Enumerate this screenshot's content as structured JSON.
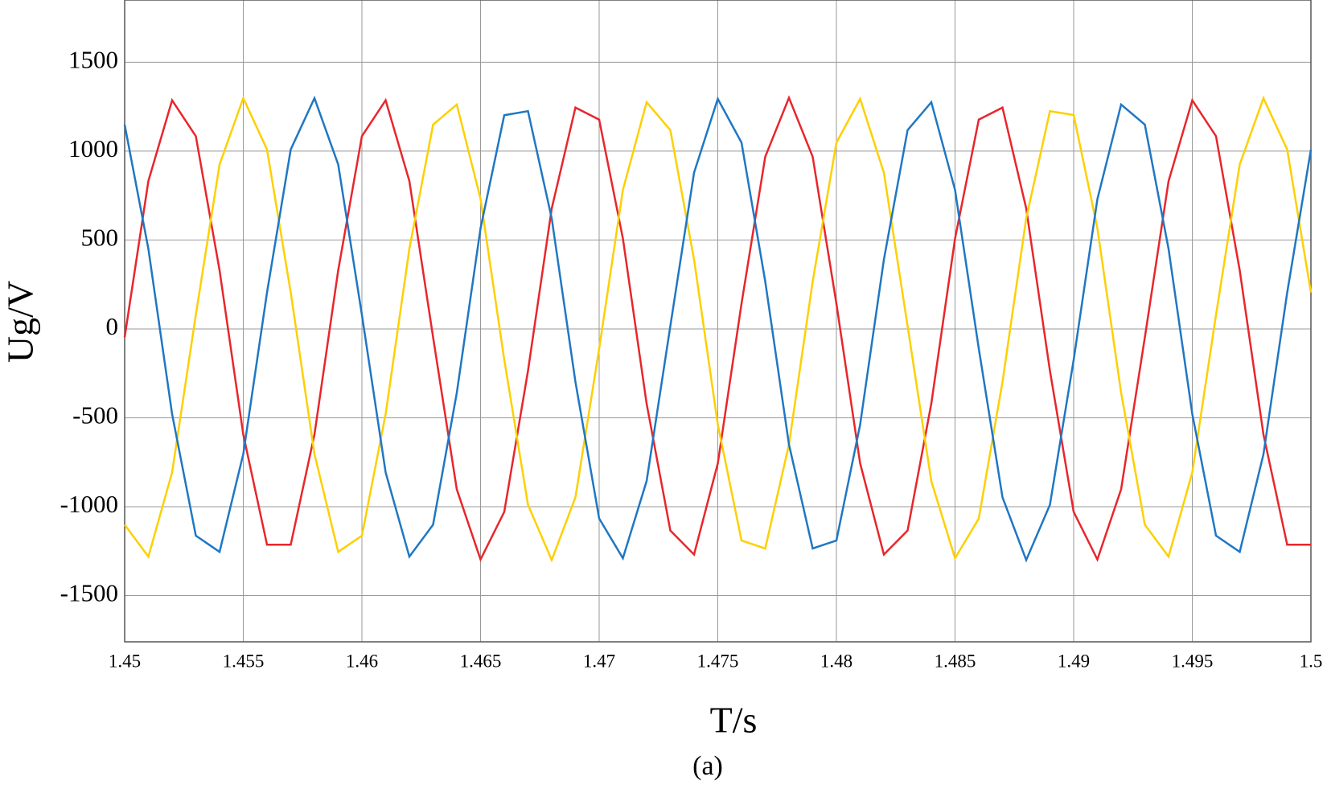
{
  "chart_data": {
    "type": "line",
    "x_label": "T/s",
    "y_label": "Ug/V",
    "caption": "(a)",
    "x": [
      1.45,
      1.451,
      1.452,
      1.453,
      1.454,
      1.455,
      1.456,
      1.457,
      1.458,
      1.459,
      1.46,
      1.461,
      1.462,
      1.463,
      1.464,
      1.465,
      1.466,
      1.467,
      1.468,
      1.469,
      1.47,
      1.471,
      1.472,
      1.473,
      1.474,
      1.475,
      1.476,
      1.477,
      1.478,
      1.479,
      1.48,
      1.481,
      1.482,
      1.483,
      1.484,
      1.485,
      1.486,
      1.487,
      1.488,
      1.489,
      1.49,
      1.491,
      1.492,
      1.493,
      1.494,
      1.495,
      1.496,
      1.497,
      1.498,
      1.499,
      1.5
    ],
    "series": [
      {
        "color": "#e8262b",
        "values": [
          -47,
          832,
          1286,
          1084,
          330,
          -594,
          -1214,
          -1214,
          -594,
          329,
          1084,
          1286,
          832,
          -47,
          -903,
          -1297,
          -1029,
          -236,
          677,
          1245,
          1177,
          509,
          -420,
          -1134,
          -1269,
          -757,
          142,
          968,
          1300,
          968,
          142,
          -756,
          -1269,
          -1134,
          -420,
          508,
          1177,
          1245,
          678,
          -236,
          -1029,
          -1297,
          -902,
          -48,
          831,
          1286,
          1084,
          329,
          -594,
          -1214,
          -1214
        ]
      },
      {
        "color": "#fdd000",
        "values": [
          -1101,
          -1281,
          -807,
          79,
          925,
          1298,
          1009,
          205,
          -704,
          -1254,
          -1163,
          -479,
          450,
          1149,
          1262,
          731,
          -173,
          -989,
          -1300,
          -947,
          -111,
          782,
          1275,
          1118,
          390,
          -537,
          -1190,
          -1235,
          -650,
          267,
          1048,
          1294,
          879,
          16,
          -856,
          -1290,
          -1067,
          -298,
          622,
          1225,
          1203,
          566,
          -359,
          -1101,
          -1281,
          -807,
          79,
          925,
          1298,
          1009,
          205
        ]
      },
      {
        "color": "#1f77c4",
        "values": [
          1149,
          450,
          -479,
          -1163,
          -1254,
          -704,
          205,
          1009,
          1298,
          925,
          79,
          -807,
          -1281,
          -1101,
          -359,
          566,
          1202,
          1225,
          622,
          -298,
          -1066,
          -1290,
          -856,
          16,
          879,
          1294,
          1048,
          267,
          -650,
          -1235,
          -1190,
          -538,
          389,
          1118,
          1275,
          782,
          -110,
          -947,
          -1300,
          -989,
          -174,
          730,
          1262,
          1149,
          450,
          -479,
          -1163,
          -1254,
          -705,
          204,
          1009
        ]
      }
    ],
    "xlim": [
      1.45,
      1.5
    ],
    "xticks": [
      1.45,
      1.455,
      1.46,
      1.465,
      1.47,
      1.475,
      1.48,
      1.485,
      1.49,
      1.495,
      1.5
    ],
    "ylim": [
      -1760,
      1850
    ],
    "yticks": [
      -1500,
      -1000,
      -500,
      0,
      500,
      1000,
      1500
    ],
    "grid": true
  }
}
